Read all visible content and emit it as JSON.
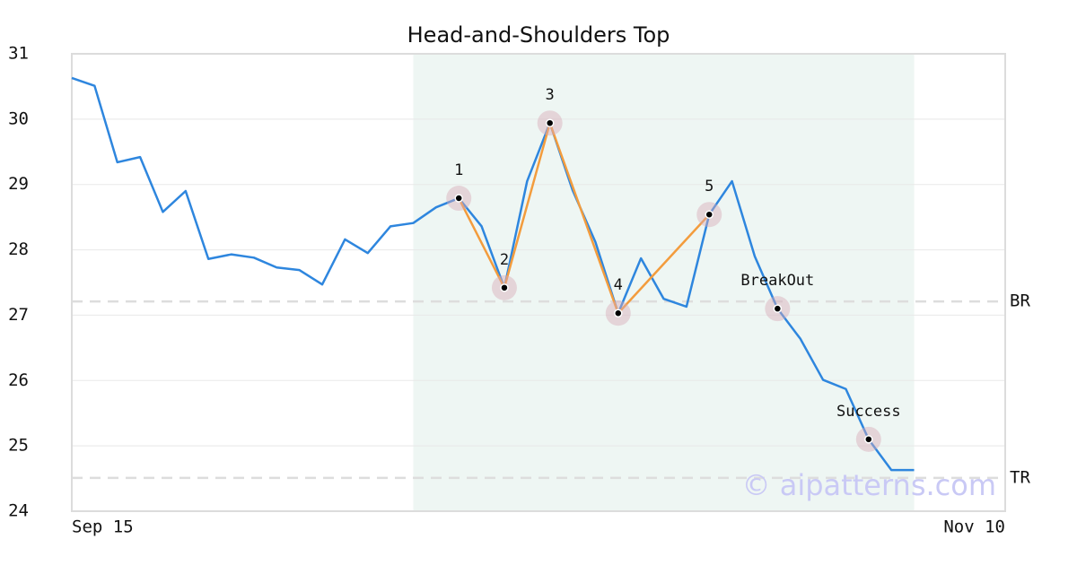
{
  "chart_data": {
    "type": "line",
    "title": "Head-and-Shoulders Top",
    "x": [
      0,
      1,
      2,
      3,
      4,
      5,
      6,
      7,
      8,
      9,
      10,
      11,
      12,
      13,
      14,
      15,
      16,
      17,
      18,
      19,
      20,
      21,
      22,
      23,
      24,
      25,
      26,
      27,
      28,
      29,
      30,
      31,
      32,
      33,
      34,
      35,
      36,
      37
    ],
    "values": [
      30.63,
      30.51,
      29.34,
      29.42,
      28.58,
      28.9,
      27.86,
      27.93,
      27.88,
      27.73,
      27.69,
      27.47,
      28.16,
      27.95,
      28.36,
      28.41,
      28.65,
      28.79,
      28.36,
      27.42,
      29.05,
      29.94,
      28.91,
      28.12,
      27.03,
      27.87,
      27.25,
      27.13,
      28.54,
      29.05,
      27.9,
      27.1,
      26.64,
      26.01,
      25.87,
      25.1,
      24.63,
      24.63
    ],
    "color": "#2e86de",
    "pattern_color": "#f39c3d",
    "highlight": [
      15,
      37
    ],
    "highlight_color": "#eef6f3",
    "annotations": [
      {
        "label": "1",
        "x": 17,
        "y": 28.79
      },
      {
        "label": "2",
        "x": 19,
        "y": 27.42
      },
      {
        "label": "3",
        "x": 21,
        "y": 29.94
      },
      {
        "label": "4",
        "x": 24,
        "y": 27.03
      },
      {
        "label": "5",
        "x": 28,
        "y": 28.54
      },
      {
        "label": "BreakOut",
        "x": 31,
        "y": 27.1
      },
      {
        "label": "Success",
        "x": 35,
        "y": 25.1
      }
    ],
    "levels": [
      {
        "label": "BR",
        "value": 27.21
      },
      {
        "label": "TR",
        "value": 24.51
      }
    ],
    "xlim": [
      0,
      41
    ],
    "xticks": [
      {
        "value": 0,
        "label": "Sep 15"
      },
      {
        "value": 41,
        "label": "Nov 10"
      }
    ],
    "ylim": [
      24,
      31
    ],
    "yticks": [
      24,
      25,
      26,
      27,
      28,
      29,
      30,
      31
    ],
    "grid": true,
    "watermark": "© aipatterns.com"
  }
}
